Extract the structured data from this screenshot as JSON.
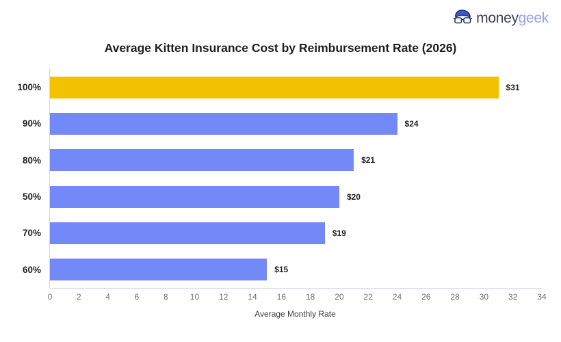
{
  "logo": {
    "brand_money": "money",
    "brand_geek": "geek",
    "money_color": "#3b4154",
    "geek_color": "#93a3f7",
    "icon_fill_color": "#4155d8",
    "icon_outline_color": "#232e63"
  },
  "chart_data": {
    "type": "bar",
    "orientation": "horizontal",
    "title": "Average Kitten Insurance Cost by Reimbursement Rate (2026)",
    "xlabel": "Average Monthly Rate",
    "ylabel": "",
    "categories": [
      "100%",
      "90%",
      "80%",
      "50%",
      "70%",
      "60%"
    ],
    "values": [
      31,
      24,
      21,
      20,
      19,
      15
    ],
    "value_labels": [
      "$31",
      "$24",
      "$21",
      "$20",
      "$19",
      "$15"
    ],
    "xlim": [
      0,
      34
    ],
    "x_ticks": [
      0,
      2,
      4,
      6,
      8,
      10,
      12,
      14,
      16,
      18,
      20,
      22,
      24,
      26,
      28,
      30,
      32,
      34
    ],
    "bar_colors": [
      "#f2c100",
      "#7489f8",
      "#7489f8",
      "#7489f8",
      "#7489f8",
      "#7489f8"
    ],
    "highlight_color": "#f2c100",
    "base_color": "#7489f8",
    "axis_color": "#d4d4f2",
    "tick_label_color": "#6f6f6f",
    "label_color": "#1f1f1f",
    "grid": false,
    "legend": false
  }
}
